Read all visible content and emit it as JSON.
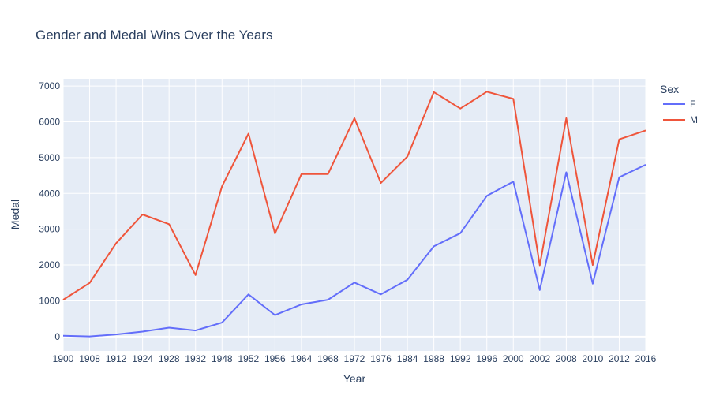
{
  "chart_data": {
    "type": "line",
    "title": "Gender and Medal Wins Over the Years",
    "xlabel": "Year",
    "ylabel": "Medal",
    "legend_title": "Sex",
    "legend_position": "top-right",
    "grid": true,
    "ylim": [
      -400,
      7200
    ],
    "y_ticks": [
      0,
      1000,
      2000,
      3000,
      4000,
      5000,
      6000,
      7000
    ],
    "categories": [
      "1900",
      "1908",
      "1912",
      "1924",
      "1928",
      "1932",
      "1948",
      "1952",
      "1956",
      "1964",
      "1968",
      "1972",
      "1976",
      "1984",
      "1988",
      "1992",
      "1996",
      "2000",
      "2002",
      "2008",
      "2010",
      "2012",
      "2016"
    ],
    "series": [
      {
        "name": "F",
        "color": "#636efa",
        "values": [
          23,
          5,
          60,
          140,
          250,
          170,
          390,
          1180,
          600,
          900,
          1030,
          1510,
          1180,
          1590,
          2520,
          2890,
          3930,
          4330,
          1300,
          4590,
          1480,
          4450,
          4800
        ]
      },
      {
        "name": "M",
        "color": "#ef553b",
        "values": [
          1030,
          1500,
          2610,
          3410,
          3140,
          1720,
          4200,
          5670,
          2880,
          4540,
          4540,
          6100,
          4290,
          5030,
          6830,
          6370,
          6840,
          6640,
          1990,
          6100,
          2000,
          5510,
          5760
        ]
      }
    ]
  }
}
